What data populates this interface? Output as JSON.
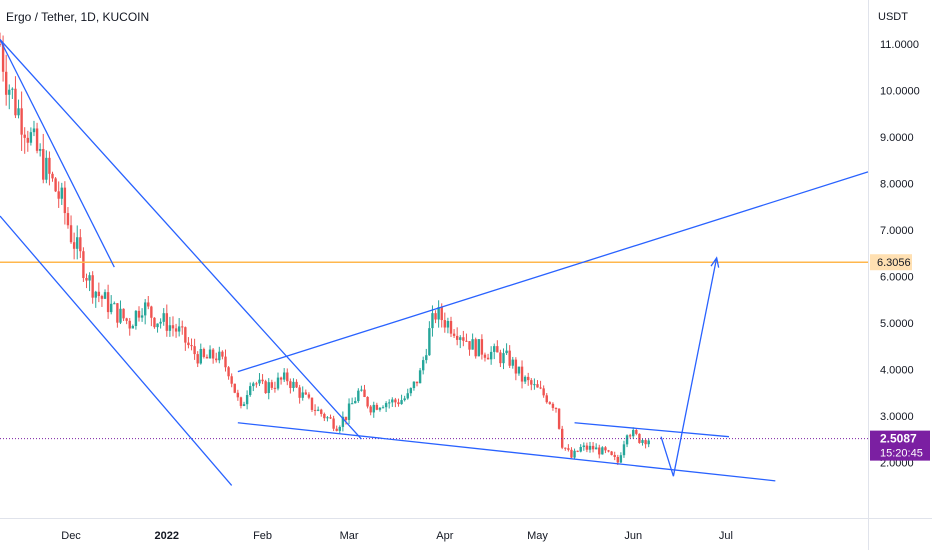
{
  "header": {
    "title": "Ergo / Tether, 1D, KUCOIN"
  },
  "chart_data": {
    "type": "candlestick",
    "title": "Ergo / Tether, 1D, KUCOIN",
    "y_axis": {
      "unit": "USDT",
      "ticks": [
        "11.0000",
        "10.0000",
        "9.0000",
        "8.0000",
        "7.0000",
        "6.0000",
        "5.0000",
        "4.0000",
        "3.0000",
        "2.0000"
      ],
      "tick_values": [
        11,
        10,
        9,
        8,
        7,
        6,
        5,
        4,
        3,
        2
      ],
      "range": [
        0.8,
        11.95
      ]
    },
    "x_axis": {
      "ticks": [
        "Dec",
        "2022",
        "Feb",
        "Mar",
        "Apr",
        "May",
        "Jun",
        "Jul"
      ],
      "tick_dates": [
        "2021-12-01",
        "2022-01-01",
        "2022-02-01",
        "2022-03-01",
        "2022-04-01",
        "2022-05-01",
        "2022-06-01",
        "2022-07-01"
      ],
      "range": [
        "2021-11-08",
        "2022-08-16"
      ]
    },
    "last_price": {
      "label": "2.5087",
      "value": 2.5087,
      "countdown": "15:20:45"
    },
    "level_line": {
      "label": "6.3056",
      "value": 6.3056
    },
    "close_series": [
      [
        "2021-11-08",
        11.0
      ],
      [
        "2021-11-10",
        10.3
      ],
      [
        "2021-11-13",
        9.7
      ],
      [
        "2021-11-16",
        9.3
      ],
      [
        "2021-11-19",
        8.8
      ],
      [
        "2021-11-22",
        8.4
      ],
      [
        "2021-11-25",
        8.0
      ],
      [
        "2021-11-28",
        7.6
      ],
      [
        "2021-12-01",
        6.9
      ],
      [
        "2021-12-04",
        6.4
      ],
      [
        "2021-12-07",
        5.9
      ],
      [
        "2021-12-10",
        5.6
      ],
      [
        "2021-12-13",
        5.4
      ],
      [
        "2021-12-16",
        5.2
      ],
      [
        "2021-12-20",
        5.0
      ],
      [
        "2021-12-24",
        5.4
      ],
      [
        "2021-12-28",
        5.1
      ],
      [
        "2022-01-01",
        5.0
      ],
      [
        "2022-01-05",
        4.8
      ],
      [
        "2022-01-09",
        4.4
      ],
      [
        "2022-01-13",
        4.2
      ],
      [
        "2022-01-17",
        4.3
      ],
      [
        "2022-01-21",
        4.0
      ],
      [
        "2022-01-25",
        3.1
      ],
      [
        "2022-01-28",
        3.8
      ],
      [
        "2022-02-01",
        3.6
      ],
      [
        "2022-02-05",
        3.7
      ],
      [
        "2022-02-09",
        3.8
      ],
      [
        "2022-02-13",
        3.5
      ],
      [
        "2022-02-17",
        3.2
      ],
      [
        "2022-02-21",
        3.0
      ],
      [
        "2022-02-25",
        2.8
      ],
      [
        "2022-02-28",
        3.0
      ],
      [
        "2022-03-04",
        3.5
      ],
      [
        "2022-03-08",
        3.2
      ],
      [
        "2022-03-12",
        3.3
      ],
      [
        "2022-03-16",
        3.3
      ],
      [
        "2022-03-20",
        3.4
      ],
      [
        "2022-03-24",
        3.9
      ],
      [
        "2022-03-27",
        4.8
      ],
      [
        "2022-03-29",
        5.2
      ],
      [
        "2022-04-02",
        5.0
      ],
      [
        "2022-04-06",
        4.8
      ],
      [
        "2022-04-10",
        4.5
      ],
      [
        "2022-04-14",
        4.4
      ],
      [
        "2022-04-18",
        4.3
      ],
      [
        "2022-04-22",
        4.2
      ],
      [
        "2022-04-26",
        3.8
      ],
      [
        "2022-04-30",
        3.6
      ],
      [
        "2022-05-04",
        3.4
      ],
      [
        "2022-05-07",
        3.2
      ],
      [
        "2022-05-09",
        2.4
      ],
      [
        "2022-05-12",
        2.1
      ],
      [
        "2022-05-15",
        2.3
      ],
      [
        "2022-05-19",
        2.3
      ],
      [
        "2022-05-23",
        2.2
      ],
      [
        "2022-05-27",
        2.0
      ],
      [
        "2022-05-30",
        2.7
      ],
      [
        "2022-06-03",
        2.5
      ],
      [
        "2022-06-06",
        2.5
      ]
    ],
    "trendlines": [
      {
        "from": [
          "2021-11-08",
          11.1
        ],
        "to": [
          "2021-12-15",
          6.2
        ]
      },
      {
        "from": [
          "2021-11-08",
          11.1
        ],
        "to": [
          "2022-03-05",
          2.5
        ]
      },
      {
        "from": [
          "2021-11-08",
          7.3
        ],
        "to": [
          "2022-01-22",
          1.5
        ]
      },
      {
        "from": [
          "2022-01-24",
          3.95
        ],
        "to": [
          "2022-08-16",
          8.25
        ]
      },
      {
        "from": [
          "2022-01-24",
          2.85
        ],
        "to": [
          "2022-07-17",
          1.6
        ]
      },
      {
        "from": [
          "2022-05-13",
          2.85
        ],
        "to": [
          "2022-07-02",
          2.55
        ]
      }
    ],
    "projection_path": [
      [
        "2022-06-10",
        2.55
      ],
      [
        "2022-06-14",
        1.7
      ],
      [
        "2022-06-28",
        6.4
      ]
    ]
  },
  "colors": {
    "up": "#26a69a",
    "down": "#ef5350",
    "trendline": "#2962ff",
    "level": "#ffb74d",
    "level_badge": "#ffe0b2",
    "last_price_badge": "#7b1fa2",
    "grid_text": "#131722"
  }
}
